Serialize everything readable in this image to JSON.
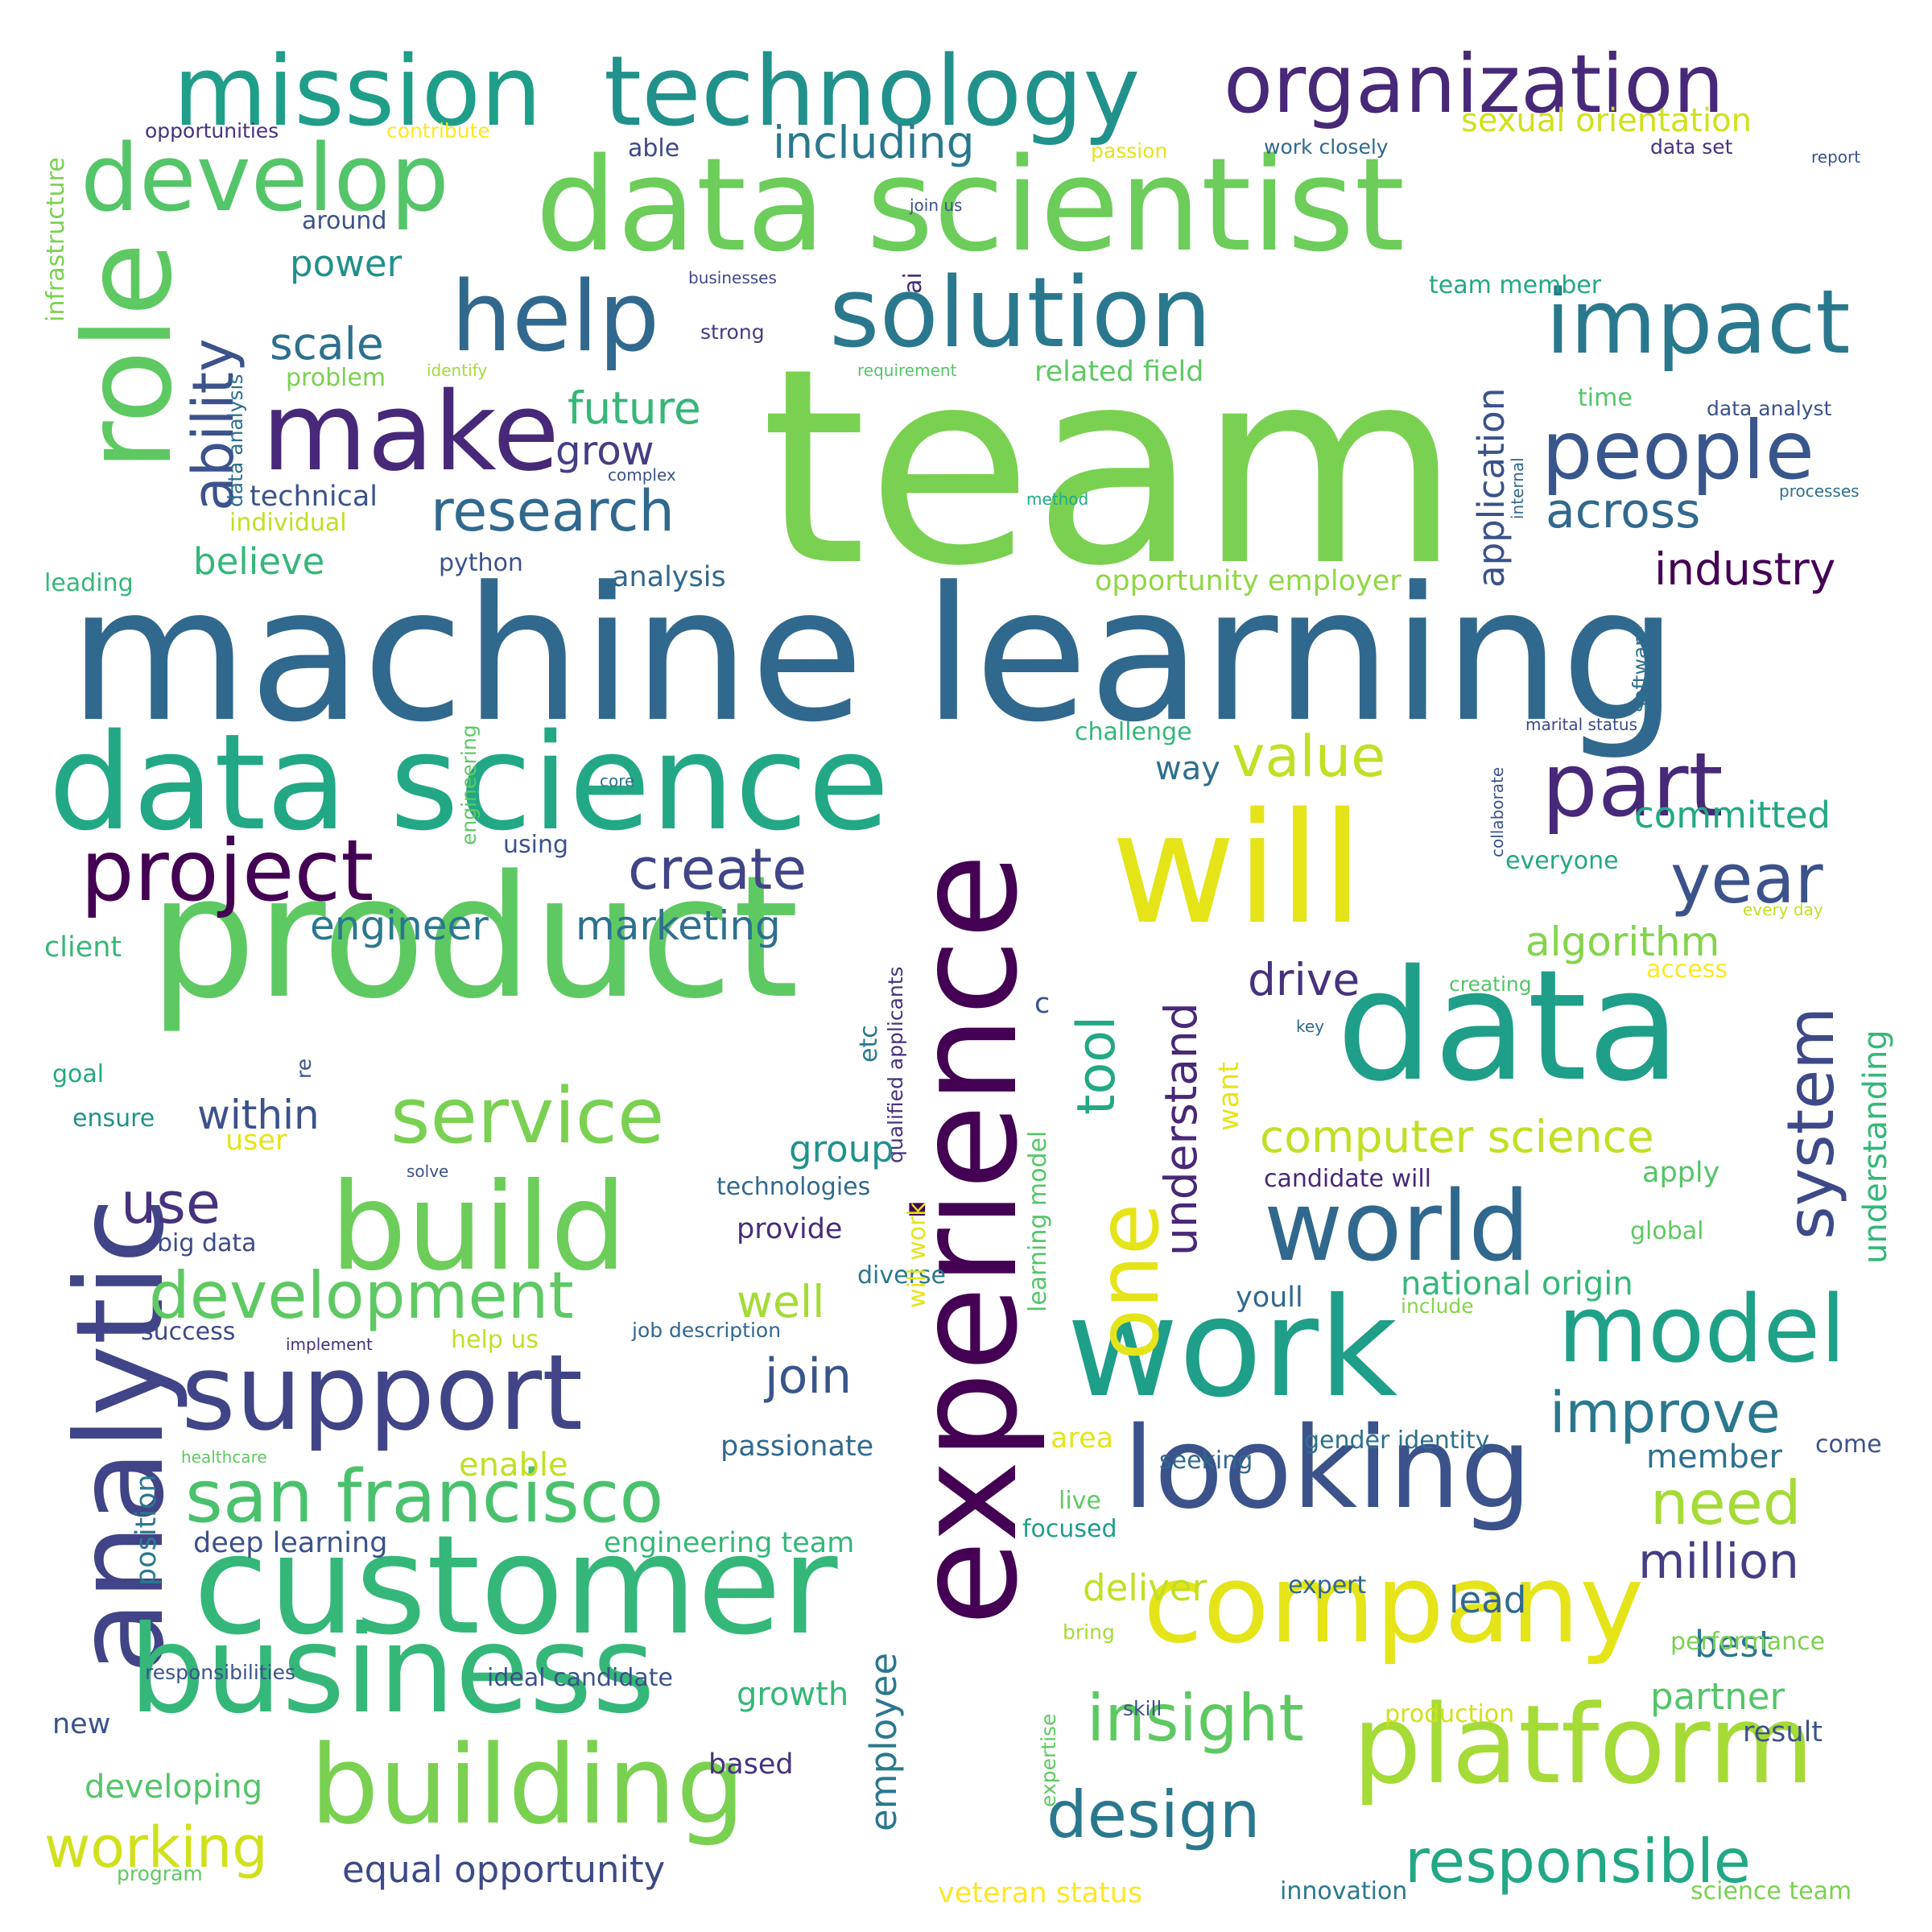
{
  "words": [
    {
      "text": "team",
      "color": "#7ad151"
    },
    {
      "text": "machine learning",
      "color": "#31688e"
    },
    {
      "text": "data scientist",
      "color": "#6ccd5a"
    },
    {
      "text": "product",
      "color": "#5ec962"
    },
    {
      "text": "experience",
      "color": "#440154"
    },
    {
      "text": "data",
      "color": "#1f9e89"
    },
    {
      "text": "will",
      "color": "#e5e419"
    },
    {
      "text": "data science",
      "color": "#22a884"
    },
    {
      "text": "work",
      "color": "#1f9e89"
    },
    {
      "text": "customer",
      "color": "#35b779"
    },
    {
      "text": "mission",
      "color": "#1f9e89"
    },
    {
      "text": "technology",
      "color": "#21918c"
    },
    {
      "text": "organization",
      "color": "#482878"
    },
    {
      "text": "role",
      "color": "#5ec962"
    },
    {
      "text": "analytic",
      "color": "#414487"
    },
    {
      "text": "business",
      "color": "#35b779"
    },
    {
      "text": "company",
      "color": "#e5e419"
    },
    {
      "text": "platform",
      "color": "#a5db36"
    },
    {
      "text": "looking",
      "color": "#3b528b"
    },
    {
      "text": "building",
      "color": "#7ad151"
    },
    {
      "text": "build",
      "color": "#6ccd5a"
    },
    {
      "text": "support",
      "color": "#414487"
    },
    {
      "text": "make",
      "color": "#482878"
    },
    {
      "text": "solution",
      "color": "#2a788e"
    },
    {
      "text": "develop",
      "color": "#54c568"
    },
    {
      "text": "help",
      "color": "#31688e"
    },
    {
      "text": "impact",
      "color": "#2a788e"
    },
    {
      "text": "people",
      "color": "#39568c"
    },
    {
      "text": "world",
      "color": "#31688e"
    },
    {
      "text": "model",
      "color": "#1fa187"
    },
    {
      "text": "project",
      "color": "#440154"
    },
    {
      "text": "service",
      "color": "#7ad151"
    },
    {
      "text": "san francisco",
      "color": "#4ac16d"
    },
    {
      "text": "development",
      "color": "#5ec962"
    },
    {
      "text": "part",
      "color": "#482878"
    },
    {
      "text": "year",
      "color": "#3b528b"
    },
    {
      "text": "system",
      "color": "#3e4989"
    },
    {
      "text": "one",
      "color": "#e5e419"
    },
    {
      "text": "insight",
      "color": "#5ec962"
    },
    {
      "text": "design",
      "color": "#2a788e"
    },
    {
      "text": "responsible",
      "color": "#22a884"
    },
    {
      "text": "working",
      "color": "#d0e11c"
    },
    {
      "text": "ability",
      "color": "#3b528b"
    },
    {
      "text": "research",
      "color": "#31688e"
    },
    {
      "text": "value",
      "color": "#c2df23"
    },
    {
      "text": "across",
      "color": "#31688e"
    },
    {
      "text": "create",
      "color": "#414487"
    },
    {
      "text": "use",
      "color": "#46327e"
    },
    {
      "text": "improve",
      "color": "#2a788e"
    },
    {
      "text": "need",
      "color": "#a5db36"
    },
    {
      "text": "million",
      "color": "#433e85"
    },
    {
      "text": "join",
      "color": "#39568c"
    },
    {
      "text": "tool",
      "color": "#22a884"
    },
    {
      "text": "understand",
      "color": "#482878"
    },
    {
      "text": "application",
      "color": "#3b528b"
    },
    {
      "text": "computer science",
      "color": "#c2df23"
    },
    {
      "text": "including",
      "color": "#2a788e"
    },
    {
      "text": "employee",
      "color": "#2a788e"
    },
    {
      "text": "industry",
      "color": "#440154"
    },
    {
      "text": "future",
      "color": "#35b779"
    },
    {
      "text": "grow",
      "color": "#433e85"
    },
    {
      "text": "power",
      "color": "#21918c"
    },
    {
      "text": "scale",
      "color": "#2d708e"
    },
    {
      "text": "believe",
      "color": "#35b779"
    },
    {
      "text": "engineer",
      "color": "#2a788e"
    },
    {
      "text": "marketing",
      "color": "#2d708e"
    },
    {
      "text": "within",
      "color": "#3b528b"
    },
    {
      "text": "well",
      "color": "#a5db36"
    },
    {
      "text": "drive",
      "color": "#46327e"
    },
    {
      "text": "algorithm",
      "color": "#84d44b"
    },
    {
      "text": "committed",
      "color": "#22a884"
    },
    {
      "text": "understanding",
      "color": "#35b779"
    },
    {
      "text": "sexual orientation",
      "color": "#d0e11c"
    },
    {
      "text": "equal opportunity",
      "color": "#3e4989"
    },
    {
      "text": "deliver",
      "color": "#c2df23"
    },
    {
      "text": "lead",
      "color": "#31688e"
    },
    {
      "text": "best",
      "color": "#2a788e"
    },
    {
      "text": "partner",
      "color": "#54c568"
    },
    {
      "text": "group",
      "color": "#21918c"
    },
    {
      "text": "way",
      "color": "#2d708e"
    },
    {
      "text": "technical",
      "color": "#3b528b"
    },
    {
      "text": "analysis",
      "color": "#31688e"
    },
    {
      "text": "opportunity employer",
      "color": "#8fd744"
    },
    {
      "text": "related field",
      "color": "#5ec962"
    },
    {
      "text": "growth",
      "color": "#35b779"
    },
    {
      "text": "developing",
      "color": "#54c568"
    },
    {
      "text": "veteran status",
      "color": "#fde725"
    },
    {
      "text": "passionate",
      "color": "#31688e"
    },
    {
      "text": "engineering team",
      "color": "#35b779"
    },
    {
      "text": "deep learning",
      "color": "#3b528b"
    },
    {
      "text": "member",
      "color": "#2d708e"
    },
    {
      "text": "enable",
      "color": "#c2df23"
    },
    {
      "text": "result",
      "color": "#3b528b"
    },
    {
      "text": "performance",
      "color": "#7ad151"
    },
    {
      "text": "ideal candidate",
      "color": "#3b528b"
    },
    {
      "text": "national origin",
      "color": "#35b779"
    },
    {
      "text": "candidate will",
      "color": "#482878"
    },
    {
      "text": "youll",
      "color": "#31688e"
    },
    {
      "text": "apply",
      "color": "#54c568"
    },
    {
      "text": "global",
      "color": "#5ec962"
    },
    {
      "text": "provide",
      "color": "#472c7a"
    },
    {
      "text": "technologies",
      "color": "#31688e"
    },
    {
      "text": "diverse",
      "color": "#2a788e"
    },
    {
      "text": "expert",
      "color": "#31688e"
    },
    {
      "text": "everyone",
      "color": "#22a884"
    },
    {
      "text": "innovation",
      "color": "#2a788e"
    },
    {
      "text": "science team",
      "color": "#7ad151"
    },
    {
      "text": "production",
      "color": "#d0e11c"
    },
    {
      "text": "area",
      "color": "#e5e419"
    },
    {
      "text": "seeking",
      "color": "#31688e"
    },
    {
      "text": "gender identity",
      "color": "#2d708e"
    },
    {
      "text": "come",
      "color": "#3b528b"
    },
    {
      "text": "live",
      "color": "#5ec962"
    },
    {
      "text": "focused",
      "color": "#1f9e89"
    },
    {
      "text": "position",
      "color": "#2a788e"
    },
    {
      "text": "new",
      "color": "#3b528b"
    },
    {
      "text": "based",
      "color": "#46327e"
    },
    {
      "text": "user",
      "color": "#e5e419"
    },
    {
      "text": "ensure",
      "color": "#21918c"
    },
    {
      "text": "success",
      "color": "#3e4989"
    },
    {
      "text": "client",
      "color": "#35b779"
    },
    {
      "text": "goal",
      "color": "#22a884"
    },
    {
      "text": "big data",
      "color": "#3e4989"
    },
    {
      "text": "solve",
      "color": "#3b528b"
    },
    {
      "text": "using",
      "color": "#3b528b"
    },
    {
      "text": "python",
      "color": "#3b528b"
    },
    {
      "text": "leading",
      "color": "#35b779"
    },
    {
      "text": "individual",
      "color": "#c2df23"
    },
    {
      "text": "problem",
      "color": "#7ad151"
    },
    {
      "text": "identify",
      "color": "#a5db36"
    },
    {
      "text": "strong",
      "color": "#433e85"
    },
    {
      "text": "complex",
      "color": "#3b528b"
    },
    {
      "text": "method",
      "color": "#22a884"
    },
    {
      "text": "requirement",
      "color": "#54c568"
    },
    {
      "text": "around",
      "color": "#3b528b"
    },
    {
      "text": "able",
      "color": "#3e4989"
    },
    {
      "text": "passion",
      "color": "#e5e419"
    },
    {
      "text": "work closely",
      "color": "#31688e"
    },
    {
      "text": "data set",
      "color": "#46327e"
    },
    {
      "text": "report",
      "color": "#3b528b"
    },
    {
      "text": "join us",
      "color": "#3b528b"
    },
    {
      "text": "businesses",
      "color": "#3e4989"
    },
    {
      "text": "team member",
      "color": "#22a884"
    },
    {
      "text": "data analyst",
      "color": "#3b528b"
    },
    {
      "text": "time",
      "color": "#54c568"
    },
    {
      "text": "internal",
      "color": "#31688e"
    },
    {
      "text": "processes",
      "color": "#2d708e"
    },
    {
      "text": "software",
      "color": "#2d708e"
    },
    {
      "text": "challenge",
      "color": "#35b779"
    },
    {
      "text": "marital status",
      "color": "#3e4989"
    },
    {
      "text": "collaborate",
      "color": "#3b528b"
    },
    {
      "text": "core",
      "color": "#2d708e"
    },
    {
      "text": "every day",
      "color": "#c2df23"
    },
    {
      "text": "access",
      "color": "#fde725"
    },
    {
      "text": "creating",
      "color": "#54c568"
    },
    {
      "text": "key",
      "color": "#31688e"
    },
    {
      "text": "etc",
      "color": "#2a788e"
    },
    {
      "text": "re",
      "color": "#3b528b"
    },
    {
      "text": "qualified applicants",
      "color": "#46327e"
    },
    {
      "text": "learning model",
      "color": "#54c568"
    },
    {
      "text": "want",
      "color": "#e5e419"
    },
    {
      "text": "will work",
      "color": "#e5e419"
    },
    {
      "text": "engineering",
      "color": "#5ec962"
    },
    {
      "text": "opportunities",
      "color": "#46327e"
    },
    {
      "text": "contribute",
      "color": "#fde725"
    },
    {
      "text": "infrastructure",
      "color": "#7ad151"
    },
    {
      "text": "data analysis",
      "color": "#2d708e"
    },
    {
      "text": "ai",
      "color": "#472c7a"
    },
    {
      "text": "implement",
      "color": "#46327e"
    },
    {
      "text": "help us",
      "color": "#c2df23"
    },
    {
      "text": "job description",
      "color": "#31688e"
    },
    {
      "text": "include",
      "color": "#84d44b"
    },
    {
      "text": "healthcare",
      "color": "#5ec962"
    },
    {
      "text": "responsibilities",
      "color": "#3b528b"
    },
    {
      "text": "program",
      "color": "#5ec962"
    },
    {
      "text": "skill",
      "color": "#3b528b"
    },
    {
      "text": "expertise",
      "color": "#5ec962"
    },
    {
      "text": "bring",
      "color": "#a5db36"
    },
    {
      "text": "c",
      "color": "#3b528b"
    }
  ]
}
